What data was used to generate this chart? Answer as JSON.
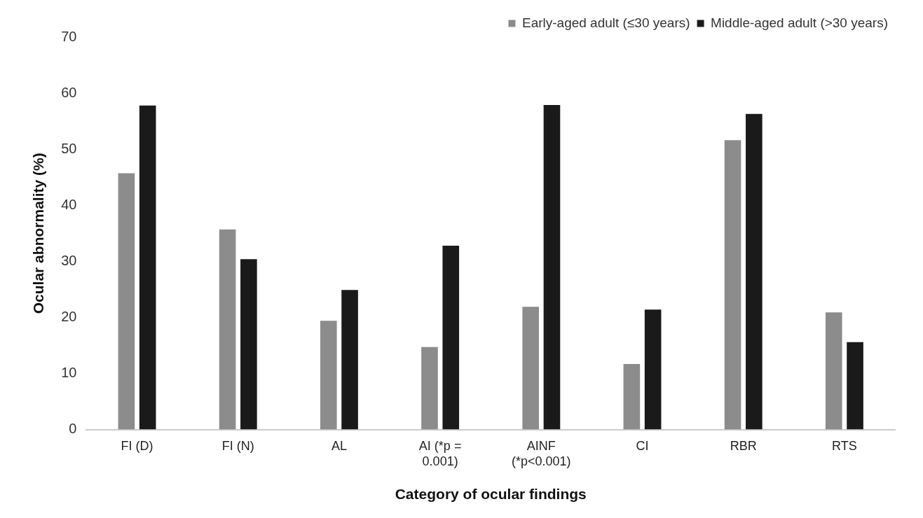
{
  "chart_data": {
    "type": "bar",
    "xlabel": "Category of ocular findings",
    "ylabel": "Ocular abnormality (%)",
    "categories": [
      "FI (D)",
      "FI (N)",
      "AL",
      "AI (*p = 0.001)",
      "AINF (*p<0.001)",
      "CI",
      "RBR",
      "RTS"
    ],
    "series": [
      {
        "name": "Early-aged adult (≤30 years)",
        "color": "#8c8c8c",
        "values": [
          45.7,
          35.7,
          19.4,
          14.7,
          21.9,
          11.7,
          51.6,
          20.9
        ]
      },
      {
        "name": "Middle-aged adult (>30 years)",
        "color": "#1a1a1a",
        "values": [
          57.8,
          30.4,
          24.9,
          32.8,
          57.9,
          21.4,
          56.3,
          15.6
        ]
      }
    ],
    "ylim": [
      0,
      70
    ],
    "yticks": [
      0,
      10,
      20,
      30,
      40,
      50,
      60,
      70
    ],
    "grid": false,
    "legend": "top right"
  }
}
